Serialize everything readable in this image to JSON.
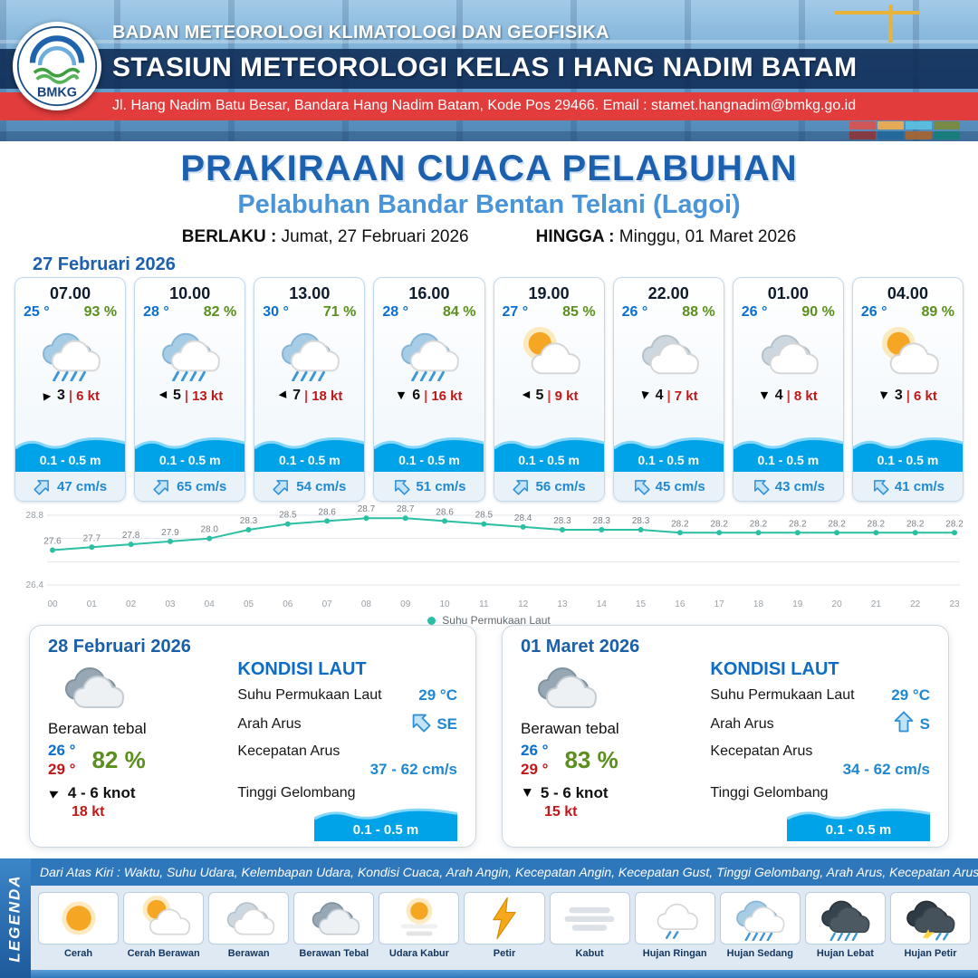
{
  "header": {
    "logo_text": "BMKG",
    "agency": "BADAN METEOROLOGI KLIMATOLOGI DAN GEOFISIKA",
    "station": "STASIUN METEOROLOGI KELAS I HANG NADIM BATAM",
    "address": "Jl. Hang Nadim Batu Besar, Bandara Hang Nadim Batam, Kode Pos 29466. Email : stamet.hangnadim@bmkg.go.id"
  },
  "title": {
    "main": "PRAKIRAAN CUACA PELABUHAN",
    "subtitle": "Pelabuhan Bandar Bentan Telani (Lagoi)",
    "berlaku_label": "BERLAKU :",
    "berlaku_value": "Jumat, 27 Februari 2026",
    "hingga_label": "HINGGA :",
    "hingga_value": "Minggu, 01 Maret 2026"
  },
  "forecast_date": "27 Februari 2026",
  "ui": {
    "wind_arrow": "►",
    "separator": "|"
  },
  "hourly": [
    {
      "time": "07.00",
      "temp": "25 °",
      "rh": "93 %",
      "icon": "hujan-sedang",
      "wind_rot": -5,
      "wind": "3",
      "gust": "6 kt",
      "wave": "0.1 - 0.5 m",
      "cur_rot": 45,
      "current": "47 cm/s"
    },
    {
      "time": "10.00",
      "temp": "28 °",
      "rh": "82 %",
      "icon": "hujan-sedang",
      "wind_rot": 180,
      "wind": "5",
      "gust": "13 kt",
      "wave": "0.1 - 0.5 m",
      "cur_rot": 45,
      "current": "65 cm/s"
    },
    {
      "time": "13.00",
      "temp": "30 °",
      "rh": "71 %",
      "icon": "hujan-sedang",
      "wind_rot": 175,
      "wind": "7",
      "gust": "18 kt",
      "wave": "0.1 - 0.5 m",
      "cur_rot": 45,
      "current": "54 cm/s"
    },
    {
      "time": "16.00",
      "temp": "28 °",
      "rh": "84 %",
      "icon": "hujan-sedang",
      "wind_rot": 90,
      "wind": "6",
      "gust": "16 kt",
      "wave": "0.1 - 0.5 m",
      "cur_rot": -45,
      "current": "51 cm/s"
    },
    {
      "time": "19.00",
      "temp": "27 °",
      "rh": "85 %",
      "icon": "cerah-berawan",
      "wind_rot": 180,
      "wind": "5",
      "gust": "9 kt",
      "wave": "0.1 - 0.5 m",
      "cur_rot": 45,
      "current": "56 cm/s"
    },
    {
      "time": "22.00",
      "temp": "26 °",
      "rh": "88 %",
      "icon": "berawan",
      "wind_rot": 100,
      "wind": "4",
      "gust": "7 kt",
      "wave": "0.1 - 0.5 m",
      "cur_rot": -45,
      "current": "45 cm/s"
    },
    {
      "time": "01.00",
      "temp": "26 °",
      "rh": "90 %",
      "icon": "berawan",
      "wind_rot": 90,
      "wind": "4",
      "gust": "8 kt",
      "wave": "0.1 - 0.5 m",
      "cur_rot": -45,
      "current": "43 cm/s"
    },
    {
      "time": "04.00",
      "temp": "26 °",
      "rh": "89 %",
      "icon": "cerah-berawan",
      "wind_rot": 95,
      "wind": "3",
      "gust": "6 kt",
      "wave": "0.1 - 0.5 m",
      "cur_rot": -45,
      "current": "41 cm/s"
    }
  ],
  "chart_data": {
    "type": "line",
    "title": "Suhu Permukaan Laut",
    "series_name": "Suhu Permukaan Laut",
    "x": [
      "00",
      "01",
      "02",
      "03",
      "04",
      "05",
      "06",
      "07",
      "08",
      "09",
      "10",
      "11",
      "12",
      "13",
      "14",
      "15",
      "16",
      "17",
      "18",
      "19",
      "20",
      "21",
      "22",
      "23"
    ],
    "values": [
      27.6,
      27.7,
      27.8,
      27.9,
      28.0,
      28.3,
      28.5,
      28.6,
      28.7,
      28.7,
      28.6,
      28.5,
      28.4,
      28.3,
      28.3,
      28.3,
      28.2,
      28.2,
      28.2,
      28.2,
      28.2,
      28.2,
      28.2,
      28.2
    ],
    "ylim": [
      26.4,
      28.8
    ],
    "yticks": [
      26.4,
      27.2,
      28.0,
      28.8
    ],
    "line_color": "#2bbfa3",
    "grid": true,
    "legend_position": "bottom"
  },
  "daily": [
    {
      "date": "28 Februari 2026",
      "icon": "berawan-tebal",
      "condition": "Berawan tebal",
      "temp_min": "26 °",
      "temp_max": "29 °",
      "rh": "82 %",
      "wind": "4 - 6 knot",
      "wind_rot": -25,
      "gust": "18 kt",
      "sea": {
        "title": "KONDISI LAUT",
        "sst_label": "Suhu Permukaan Laut",
        "sst": "29 °C",
        "current_dir_label": "Arah Arus",
        "current_dir": "SE",
        "current_dir_rot": 135,
        "current_speed_label": "Kecepatan Arus",
        "current_speed": "37 - 62 cm/s",
        "wave_label": "Tinggi Gelombang",
        "wave": "0.1 - 0.5 m"
      }
    },
    {
      "date": "01 Maret 2026",
      "icon": "berawan-tebal",
      "condition": "Berawan tebal",
      "temp_min": "26 °",
      "temp_max": "29 °",
      "rh": "83 %",
      "wind": "5 - 6 knot",
      "wind_rot": 90,
      "gust": "15 kt",
      "sea": {
        "title": "KONDISI LAUT",
        "sst_label": "Suhu Permukaan Laut",
        "sst": "29 °C",
        "current_dir_label": "Arah Arus",
        "current_dir": "S",
        "current_dir_rot": 180,
        "current_speed_label": "Kecepatan Arus",
        "current_speed": "34 - 62 cm/s",
        "wave_label": "Tinggi Gelombang",
        "wave": "0.1 - 0.5 m"
      }
    }
  ],
  "legend": {
    "title": "LEGENDA",
    "note": "Dari Atas Kiri : Waktu, Suhu Udara, Kelembapan Udara, Kondisi Cuaca, Arah Angin, Kecepatan Angin, Kecepatan Gust, Tinggi Gelombang, Arah Arus, Kecepatan Arus",
    "items": [
      {
        "label": "Cerah",
        "icon": "cerah"
      },
      {
        "label": "Cerah Berawan",
        "icon": "cerah-berawan"
      },
      {
        "label": "Berawan",
        "icon": "berawan"
      },
      {
        "label": "Berawan Tebal",
        "icon": "berawan-tebal"
      },
      {
        "label": "Udara Kabur",
        "icon": "udara-kabur"
      },
      {
        "label": "Petir",
        "icon": "petir"
      },
      {
        "label": "Kabut",
        "icon": "kabut"
      },
      {
        "label": "Hujan Ringan",
        "icon": "hujan-ringan"
      },
      {
        "label": "Hujan Sedang",
        "icon": "hujan-sedang"
      },
      {
        "label": "Hujan Lebat",
        "icon": "hujan-lebat"
      },
      {
        "label": "Hujan Petir",
        "icon": "hujan-petir"
      }
    ]
  },
  "colors": {
    "accent_blue": "#1c60ae",
    "light_blue": "#4a94d8",
    "wave_blue": "#00a2e8",
    "humidity_green": "#5a8f1d",
    "gust_red": "#c01818",
    "band_red": "#e23c3c",
    "chart_teal": "#2bbfa3"
  }
}
